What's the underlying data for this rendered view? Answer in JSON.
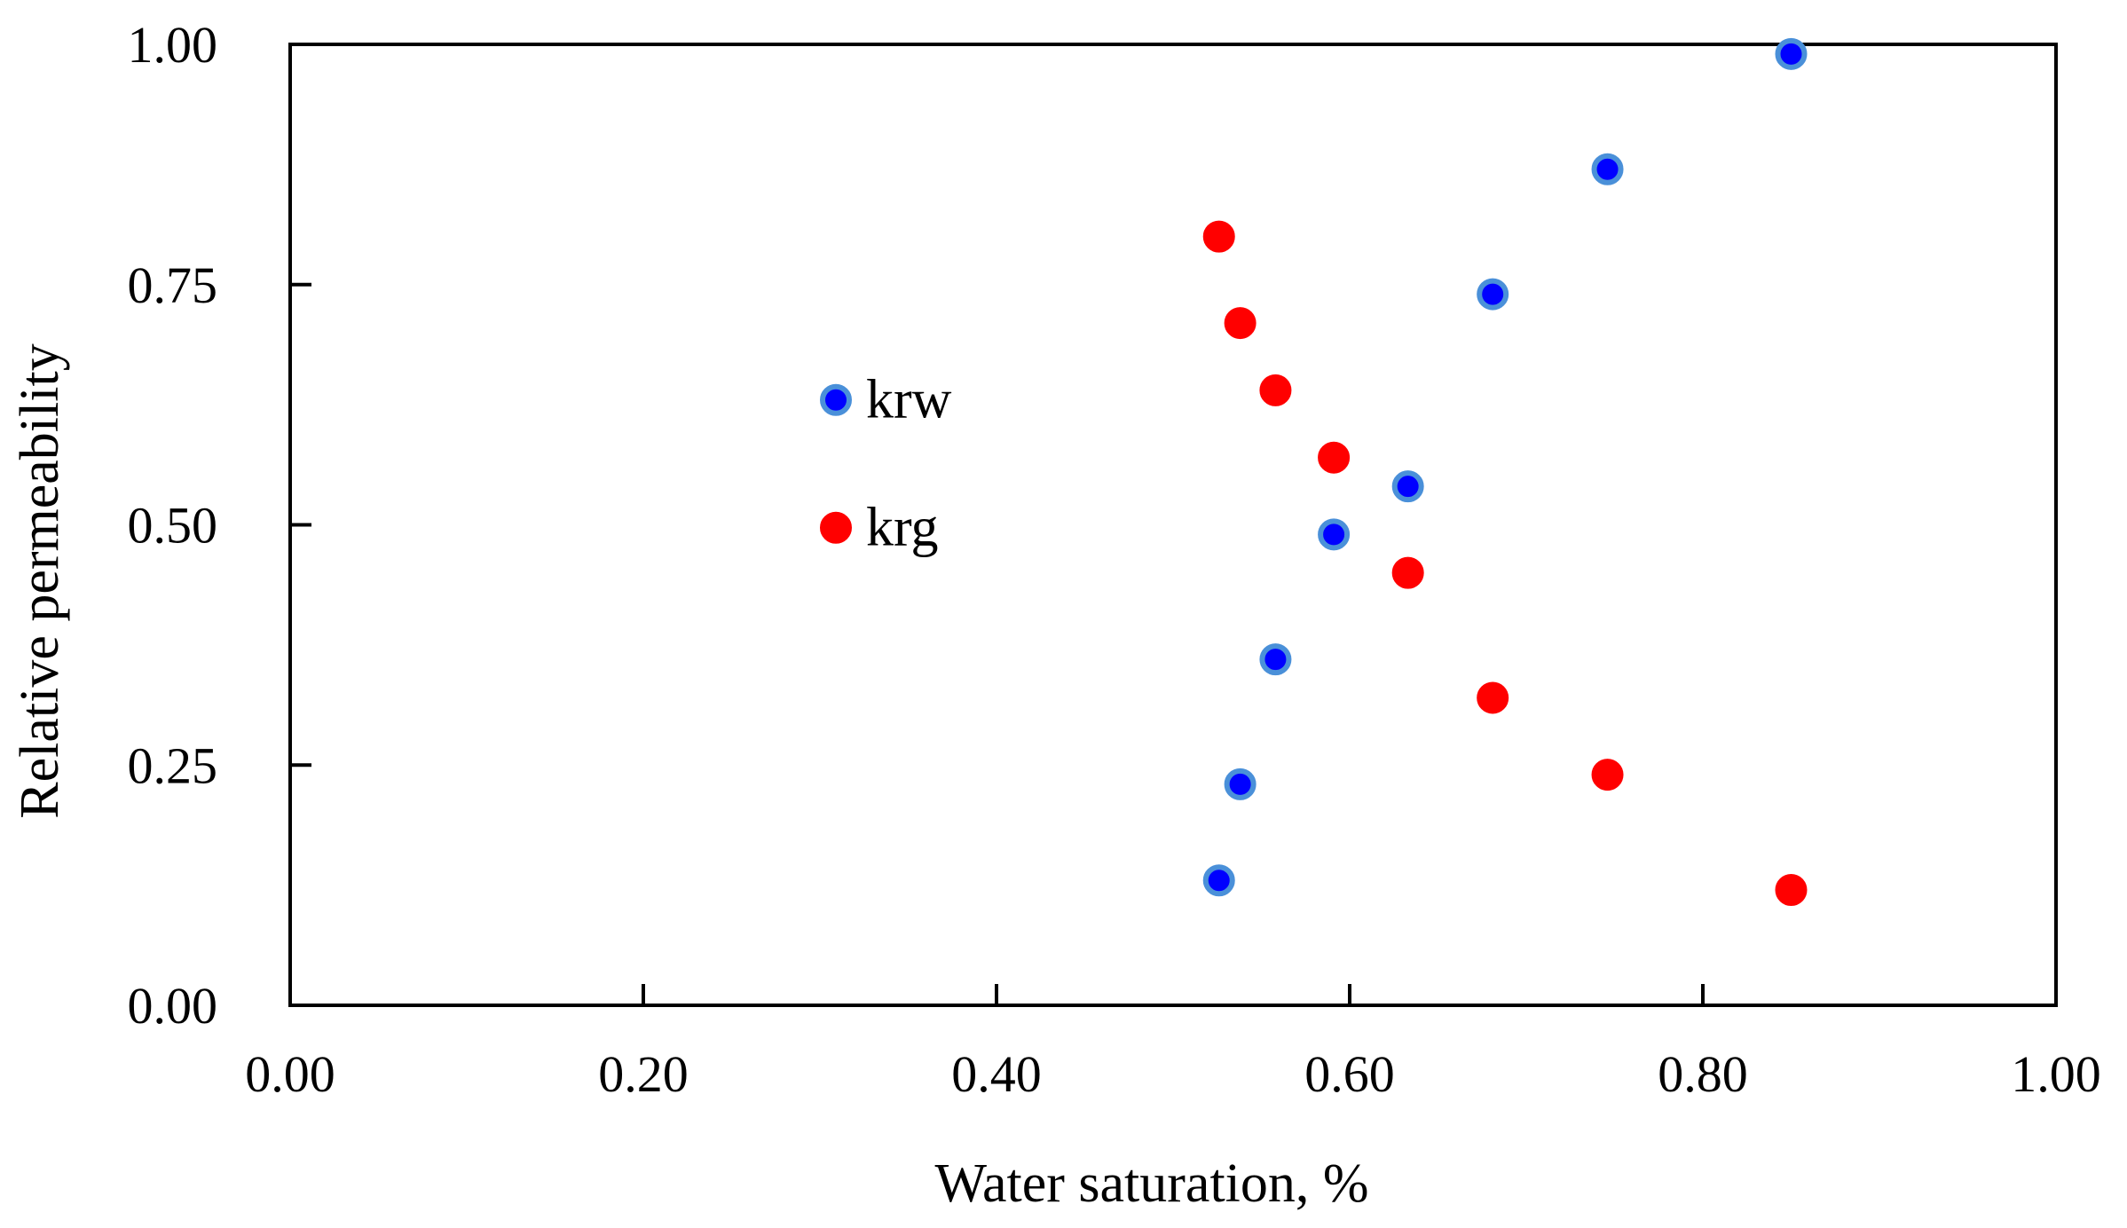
{
  "chart_data": {
    "type": "scatter",
    "title": "",
    "xlabel": "Water saturation, %",
    "ylabel": "Relative permeability",
    "xlim": [
      0,
      1
    ],
    "ylim": [
      0,
      1
    ],
    "x_ticks": [
      0,
      0.2,
      0.4,
      0.6,
      0.8,
      1.0
    ],
    "y_ticks": [
      0,
      0.25,
      0.5,
      0.75,
      1.0
    ],
    "x_tick_labels": [
      "0.00",
      "0.20",
      "0.40",
      "0.60",
      "0.80",
      "1.00"
    ],
    "y_tick_labels": [
      "0.00",
      "0.25",
      "0.50",
      "0.75",
      "1.00"
    ],
    "grid": false,
    "legend_position": "left-center",
    "series": [
      {
        "name": "krw",
        "color": "#0000ff",
        "edge_color": "#4a90d9",
        "x": [
          0.526,
          0.538,
          0.558,
          0.591,
          0.633,
          0.681,
          0.746,
          0.85
        ],
        "y": [
          0.13,
          0.23,
          0.36,
          0.49,
          0.54,
          0.74,
          0.87,
          0.99
        ]
      },
      {
        "name": "krg",
        "color": "#ff0000",
        "edge_color": "#ff0000",
        "x": [
          0.526,
          0.538,
          0.558,
          0.591,
          0.633,
          0.681,
          0.746,
          0.85
        ],
        "y": [
          0.8,
          0.71,
          0.64,
          0.57,
          0.45,
          0.32,
          0.24,
          0.12
        ]
      }
    ]
  }
}
